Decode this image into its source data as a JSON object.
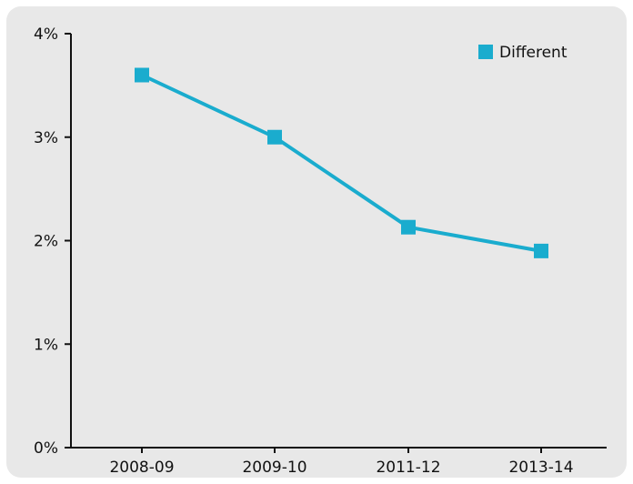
{
  "chart_data": {
    "type": "line",
    "categories": [
      "2008-09",
      "2009-10",
      "2011-12",
      "2013-14"
    ],
    "series": [
      {
        "name": "Different",
        "values": [
          3.6,
          3.0,
          2.13,
          1.9
        ],
        "color": "#1aacce"
      }
    ],
    "y_ticks": [
      "0%",
      "1%",
      "2%",
      "3%",
      "4%"
    ],
    "y_tick_values": [
      0,
      1,
      2,
      3,
      4
    ],
    "ylim": [
      0,
      4
    ],
    "title": "",
    "xlabel": "",
    "ylabel": "",
    "grid": false,
    "legend": {
      "placement": "top-right",
      "entries": [
        "Different"
      ]
    },
    "colors": {
      "background": "#e8e8e8",
      "axis": "#111111",
      "series": "#1aacce"
    }
  }
}
